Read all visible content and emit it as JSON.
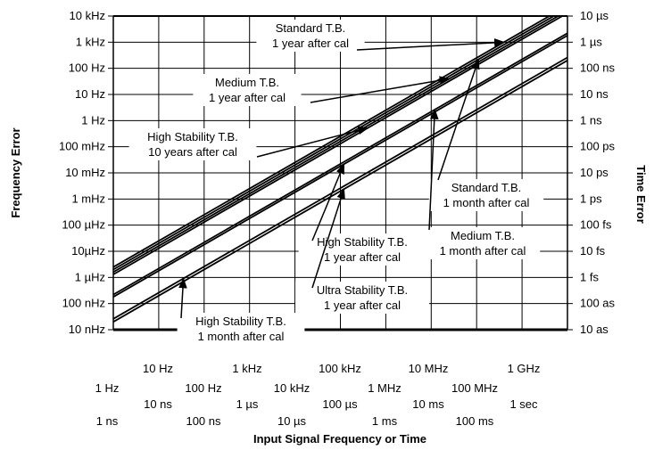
{
  "chart_data": {
    "type": "line",
    "xlabel": "Input Signal Frequency or Time",
    "ylabel_left": "Frequency Error",
    "ylabel_right": "Time Error",
    "x_scale": "log",
    "y_scale": "log",
    "x_ticks_frequency": [
      "1 Hz",
      "10 Hz",
      "100 Hz",
      "1 kHz",
      "10 kHz",
      "100 kHz",
      "1 MHz",
      "10 MHz",
      "100 MHz",
      "1 GHz"
    ],
    "x_ticks_time": [
      "1 ns",
      "10 ns",
      "100 ns",
      "1 µs",
      "10 µs",
      "100 µs",
      "1 ms",
      "10 ms",
      "100 ms",
      "1 sec"
    ],
    "y_ticks_left": [
      "10 kHz",
      "1 kHz",
      "100 Hz",
      "10 Hz",
      "1 Hz",
      "100 mHz",
      "10 mHz",
      "1 mHz",
      "100 µHz",
      "10µHz",
      "1 µHz",
      "100 nHz",
      "10 nHz"
    ],
    "y_ticks_right": [
      "10 µs",
      "1 µs",
      "100 ns",
      "10 ns",
      "1 ns",
      "100 ps",
      "10 ps",
      "1 ps",
      "100 fs",
      "10 fs",
      "1 fs",
      "100 as",
      "10 as"
    ],
    "grid": true,
    "series": [
      {
        "name": "Standard T.B. 1 year after cal",
        "x": [
          1,
          10000000000.0
        ],
        "y": [
          2.5e-06,
          25000
        ]
      },
      {
        "name": "Standard T.B. 1 month after cal",
        "x": [
          1,
          10000000000.0
        ],
        "y": [
          2e-06,
          20000
        ]
      },
      {
        "name": "Medium T.B. 1 year after cal",
        "x": [
          1,
          10000000000.0
        ],
        "y": [
          1.6e-06,
          16000
        ]
      },
      {
        "name": "High Stability T.B. 10 years after cal",
        "x": [
          1,
          10000000000.0
        ],
        "y": [
          1.3e-06,
          13000
        ]
      },
      {
        "name": "Medium T.B. 1 month after cal",
        "x": [
          1,
          10000000000.0
        ],
        "y": [
          2.2e-07,
          2200
        ]
      },
      {
        "name": "High Stability T.B. 1 year after cal",
        "x": [
          1,
          10000000000.0
        ],
        "y": [
          1.8e-07,
          1800
        ]
      },
      {
        "name": "High Stability T.B. 1 month after cal",
        "x": [
          1,
          10000000000.0
        ],
        "y": [
          2.6e-08,
          260
        ]
      },
      {
        "name": "Ultra Stability T.B. 1 year after cal",
        "x": [
          1,
          10000000000.0
        ],
        "y": [
          2e-08,
          200
        ]
      }
    ],
    "annotations": [
      {
        "lines": [
          "Standard T.B.",
          "1 year after cal"
        ],
        "series": 0,
        "arrow_x": 400000000.0
      },
      {
        "lines": [
          "Medium T.B.",
          "1 year after cal"
        ],
        "series": 2,
        "arrow_x": 25000000.0
      },
      {
        "lines": [
          "High Stability T.B.",
          "10 years after cal"
        ],
        "series": 3,
        "arrow_x": 400000.0
      },
      {
        "lines": [
          "Standard T.B.",
          "1 month after cal"
        ],
        "series": 1,
        "arrow_x": 110000000.0
      },
      {
        "lines": [
          "High Stability T.B.",
          "1 year after cal"
        ],
        "series": 5,
        "arrow_x": 120000.0
      },
      {
        "lines": [
          "Medium T.B.",
          "1 month after cal"
        ],
        "series": 4,
        "arrow_x": 12000000.0
      },
      {
        "lines": [
          "Ultra Stability T.B.",
          "1 year after cal"
        ],
        "series": 7,
        "arrow_x": 120000.0
      },
      {
        "lines": [
          "High Stability T.B.",
          "1 month after cal"
        ],
        "series": 6,
        "arrow_x": 35
      }
    ]
  }
}
